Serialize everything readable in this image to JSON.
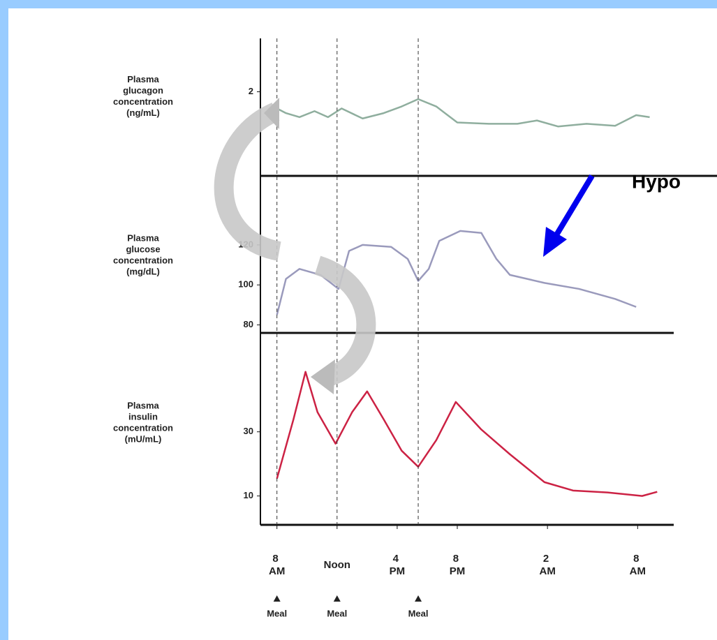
{
  "chart_data": [
    {
      "type": "line",
      "ylabel": [
        "Plasma",
        "glucagon",
        "concentration",
        "(ng/mL)"
      ],
      "color": "#8fae9e",
      "xlim": [
        6.9,
        34.4
      ],
      "ylim": [
        0.74,
        2.8
      ],
      "yticks": [
        2
      ],
      "x": [
        8,
        8.6,
        9.5,
        10.5,
        11.4,
        12.3,
        13.7,
        15.1,
        16.3,
        17.4,
        18.6,
        20,
        22.1,
        24,
        25.3,
        26.7,
        28.6,
        30.5,
        31.9,
        32.8
      ],
      "values": [
        1.75,
        1.68,
        1.62,
        1.71,
        1.62,
        1.75,
        1.6,
        1.68,
        1.78,
        1.89,
        1.78,
        1.54,
        1.52,
        1.52,
        1.57,
        1.48,
        1.52,
        1.49,
        1.65,
        1.62
      ]
    },
    {
      "type": "line",
      "ylabel": [
        "Plasma",
        "glucose",
        "concentration",
        "(mg/dL)"
      ],
      "color": "#9a9abc",
      "xlim": [
        6.9,
        34.4
      ],
      "ylim": [
        76,
        143
      ],
      "yticks": [
        80,
        100,
        120
      ],
      "annotation": "Hypo",
      "x": [
        8,
        8.6,
        9.5,
        10.9,
        12.1,
        12.8,
        13.7,
        15.6,
        16.7,
        17.4,
        18.1,
        18.8,
        20.2,
        21.6,
        22.6,
        23.5,
        25.8,
        28.1,
        30.5,
        31.9
      ],
      "values": [
        85,
        103,
        108,
        105,
        98,
        117,
        120,
        119,
        113,
        102,
        108,
        122,
        127,
        126,
        113,
        105,
        101,
        98,
        93,
        89
      ]
    },
    {
      "type": "line",
      "ylabel": [
        "Plasma",
        "insulin",
        "concentration",
        "(mU/mL)"
      ],
      "color": "#cc2244",
      "xlim": [
        6.9,
        34.4
      ],
      "ylim": [
        1,
        58
      ],
      "yticks": [
        10,
        30
      ],
      "xticks": [
        {
          "value": 8,
          "label": "8 AM"
        },
        {
          "value": 12,
          "label": "Noon"
        },
        {
          "value": 16,
          "label": "4 PM"
        },
        {
          "value": 20,
          "label": "8 PM"
        },
        {
          "value": 26,
          "label": "2 AM"
        },
        {
          "value": 32,
          "label": "8 AM"
        }
      ],
      "meals": [
        {
          "x": 8,
          "label": "Meal"
        },
        {
          "x": 12,
          "label": "Meal"
        },
        {
          "x": 17.4,
          "label": "Meal"
        }
      ],
      "x": [
        8,
        9.1,
        9.9,
        10.7,
        11.9,
        13,
        14,
        15.1,
        16.3,
        17.4,
        18.6,
        19.9,
        21.6,
        23.5,
        25.8,
        27.7,
        30,
        32.3,
        33.3
      ],
      "values": [
        15.4,
        33.9,
        48.7,
        36.1,
        26.3,
        36.1,
        42.6,
        33.9,
        24.1,
        19.1,
        27.4,
        39.3,
        30.7,
        23,
        14.3,
        11.7,
        11.1,
        10,
        11.3
      ]
    }
  ]
}
